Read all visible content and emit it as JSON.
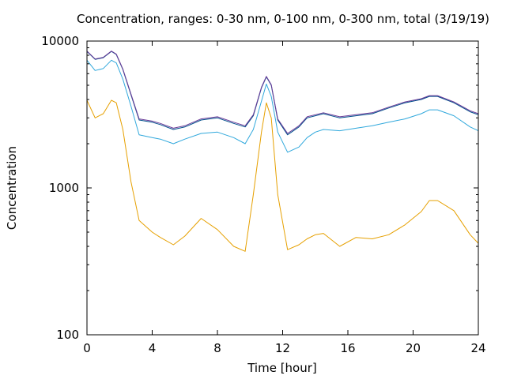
{
  "chart_data": {
    "type": "line",
    "title": "Concentration, ranges: 0-30 nm, 0-100 nm, 0-300 nm, total (3/19/19)",
    "xlabel": "Time [hour]",
    "ylabel": "Concentration",
    "xlim": [
      0,
      24
    ],
    "ylim": [
      100,
      10000
    ],
    "yscale": "log",
    "grid": false,
    "x_ticks": [
      0,
      4,
      8,
      12,
      16,
      20,
      24
    ],
    "x_tick_labels": [
      "0",
      "4",
      "8",
      "12",
      "16",
      "20",
      "24"
    ],
    "y_ticks": [
      100,
      1000,
      10000
    ],
    "y_tick_labels": [
      "100",
      "1000",
      "10000"
    ],
    "x": [
      0,
      0.5,
      1,
      1.5,
      1.8,
      2.2,
      2.7,
      3.2,
      4,
      4.5,
      5.3,
      6,
      7,
      8,
      9,
      9.7,
      10.2,
      10.7,
      11,
      11.3,
      11.7,
      12.3,
      13,
      13.5,
      14,
      14.5,
      15.5,
      16.5,
      17.5,
      18.5,
      19.5,
      20.5,
      21,
      21.5,
      22.5,
      23.5,
      24
    ],
    "series": [
      {
        "color": "#e6a000",
        "values": [
          3950,
          3000,
          3200,
          3950,
          3800,
          2500,
          1100,
          600,
          500,
          460,
          410,
          470,
          620,
          520,
          400,
          370,
          900,
          2400,
          3800,
          3000,
          900,
          380,
          410,
          450,
          480,
          490,
          400,
          460,
          450,
          480,
          560,
          690,
          820,
          820,
          700,
          480,
          420
        ]
      },
      {
        "color": "#30a8dc",
        "values": [
          7400,
          6300,
          6500,
          7400,
          7100,
          5500,
          3600,
          2300,
          2200,
          2150,
          2000,
          2150,
          2350,
          2400,
          2200,
          2000,
          2500,
          3900,
          5100,
          4200,
          2400,
          1750,
          1900,
          2200,
          2400,
          2500,
          2450,
          2550,
          2650,
          2800,
          2950,
          3200,
          3400,
          3400,
          3100,
          2600,
          2450
        ]
      },
      {
        "color": "#00508c",
        "values": [
          8500,
          7500,
          7700,
          8500,
          8100,
          6400,
          4300,
          2900,
          2800,
          2700,
          2500,
          2600,
          2900,
          3000,
          2750,
          2600,
          3100,
          4800,
          5700,
          5000,
          2900,
          2300,
          2600,
          3000,
          3100,
          3200,
          3000,
          3100,
          3200,
          3500,
          3800,
          4000,
          4200,
          4200,
          3800,
          3300,
          3150
        ]
      },
      {
        "color": "#6a3a98",
        "values": [
          8550,
          7550,
          7750,
          8550,
          8150,
          6450,
          4350,
          2950,
          2850,
          2750,
          2550,
          2650,
          2950,
          3050,
          2800,
          2650,
          3150,
          4850,
          5750,
          5050,
          2950,
          2350,
          2650,
          3050,
          3150,
          3250,
          3050,
          3150,
          3250,
          3550,
          3850,
          4050,
          4250,
          4250,
          3850,
          3350,
          3200
        ]
      }
    ]
  }
}
